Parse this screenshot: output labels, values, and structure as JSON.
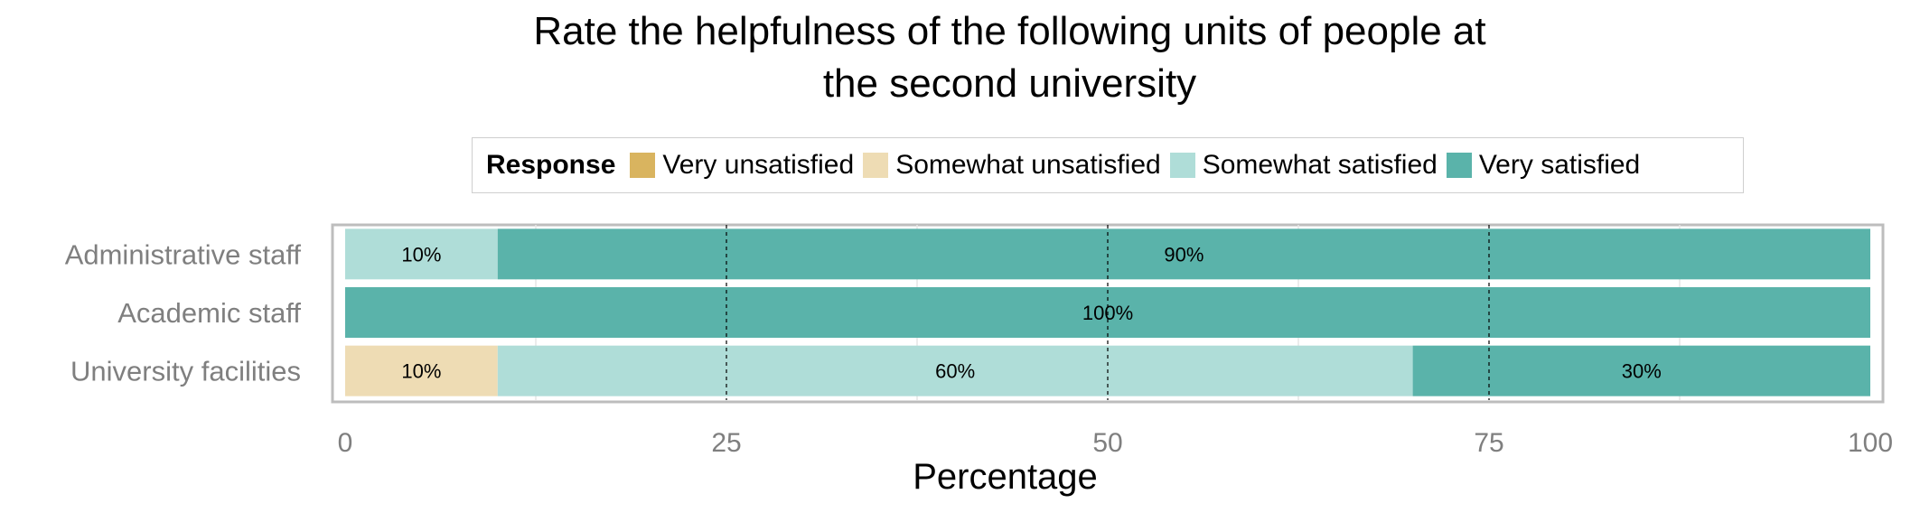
{
  "chart_data": {
    "type": "bar",
    "orientation": "horizontal",
    "stacked": true,
    "title_lines": [
      "Rate the helpfulness of the following units of people at",
      "the second university"
    ],
    "xlabel": "Percentage",
    "ylabel": "",
    "xlim": [
      0,
      100
    ],
    "xticks": [
      0,
      25,
      50,
      75,
      100
    ],
    "legend": {
      "title": "Response",
      "position": "top"
    },
    "categories": [
      "Administrative staff",
      "Academic staff",
      "University facilities"
    ],
    "series": [
      {
        "name": "Very unsatisfied",
        "color": "#D9B45F",
        "values": [
          0,
          0,
          0
        ]
      },
      {
        "name": "Somewhat unsatisfied",
        "color": "#EEDCB4",
        "values": [
          0,
          0,
          10
        ]
      },
      {
        "name": "Somewhat satisfied",
        "color": "#AFDDD8",
        "values": [
          10,
          0,
          60
        ]
      },
      {
        "name": "Very satisfied",
        "color": "#5AB3AA",
        "values": [
          90,
          100,
          30
        ]
      }
    ],
    "data_labels": [
      [
        "",
        "",
        "10%",
        "90%"
      ],
      [
        "",
        "",
        "",
        "100%"
      ],
      [
        "",
        "10%",
        "60%",
        "30%"
      ]
    ],
    "grid": true
  }
}
